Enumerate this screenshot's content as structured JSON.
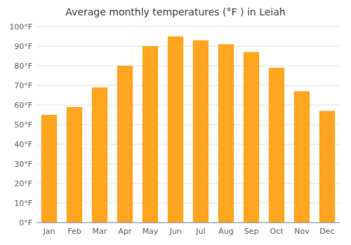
{
  "chart_data": {
    "type": "bar",
    "title": "Average monthly temperatures (°F ) in Leiah",
    "categories": [
      "Jan",
      "Feb",
      "Mar",
      "Apr",
      "May",
      "Jun",
      "Jul",
      "Aug",
      "Sep",
      "Oct",
      "Nov",
      "Dec"
    ],
    "values": [
      55,
      59,
      69,
      80,
      90,
      95,
      93,
      91,
      87,
      79,
      67,
      57
    ],
    "color": "#FFA520",
    "ylim": [
      0,
      100
    ],
    "yticks": [
      {
        "value": 0,
        "label": "0°F"
      },
      {
        "value": 10,
        "label": "10°F"
      },
      {
        "value": 20,
        "label": "20°F"
      },
      {
        "value": 30,
        "label": "30°F"
      },
      {
        "value": 40,
        "label": "40°F"
      },
      {
        "value": 50,
        "label": "50°F"
      },
      {
        "value": 60,
        "label": "60°F"
      },
      {
        "value": 70,
        "label": "70°F"
      },
      {
        "value": 80,
        "label": "80°F"
      },
      {
        "value": 90,
        "label": "90°F"
      },
      {
        "value": 100,
        "label": "100°F"
      }
    ],
    "grid": true
  }
}
